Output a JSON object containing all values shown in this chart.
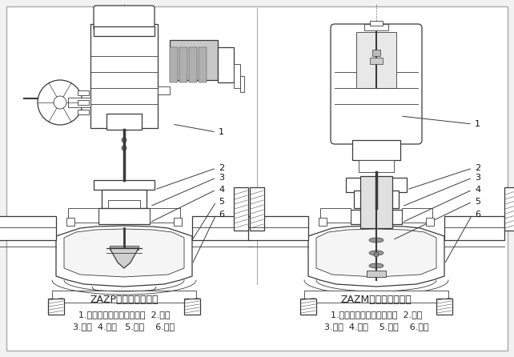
{
  "background_color": "#f2f2f2",
  "border_color": "#888888",
  "image_bg": "#ffffff",
  "title_left": "ZAZP电动单座调节阀",
  "title_right": "ZAZM电动套筒调节阀",
  "label_left_line1": "1.电动执行机构（普通型）  2.阀盖",
  "label_left_line2": "3.阀杆  4.阀芯   5.阀座    6.阀体",
  "label_right_line1": "1.电动执行机构（电子式）  2.阀盖",
  "label_right_line2": "3.阀杆  4.阀塞    5.套筒    6.阀体",
  "font_size_title": 9,
  "font_size_label": 8,
  "text_color": "#222222",
  "figsize": [
    6.42,
    4.46
  ],
  "dpi": 100
}
